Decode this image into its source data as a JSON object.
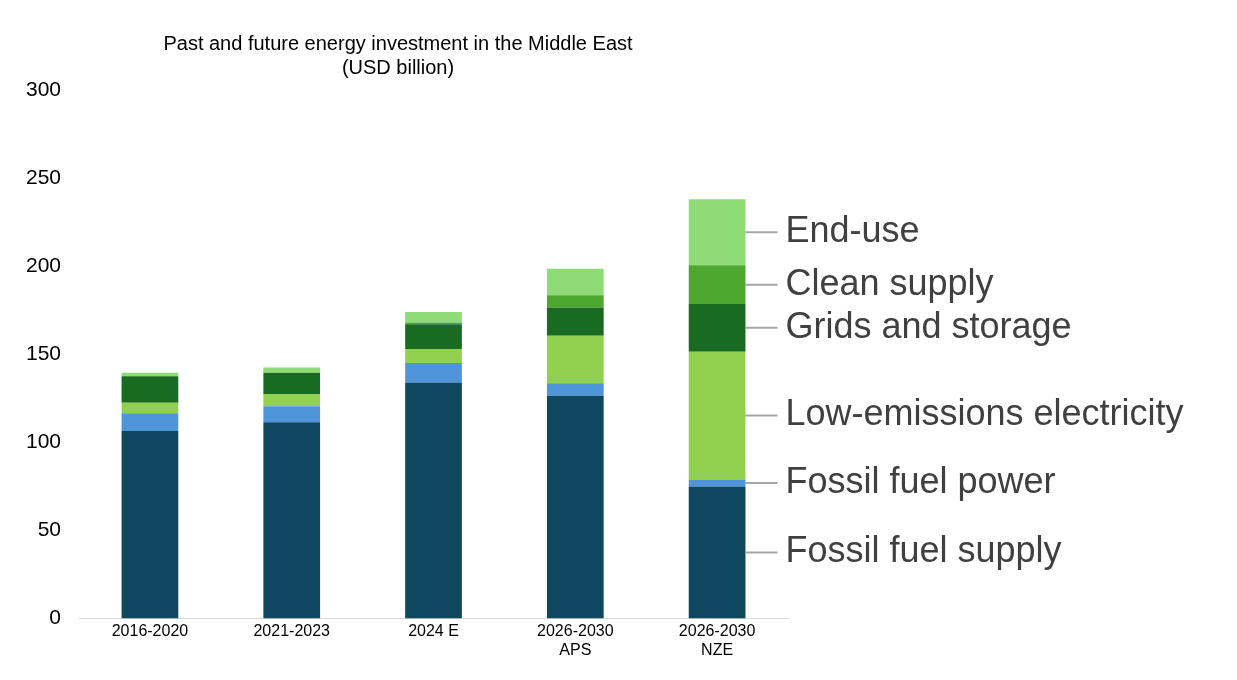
{
  "chart_data": {
    "type": "bar",
    "title": [
      "Past and future energy investment in the Middle East",
      "(USD billion)"
    ],
    "categories": [
      "2016-2020",
      "2021-2023",
      "2024 E",
      "2026-2030\nAPS",
      "2026-2030\nNZE"
    ],
    "stacked": true,
    "legend": "right",
    "grid": false,
    "ylim": [
      0,
      300
    ],
    "yticks": [
      0,
      50,
      100,
      150,
      200,
      250,
      300
    ],
    "series": [
      {
        "name": "Fossil fuel supply",
        "color": "#0f4761",
        "values": [
          106.5,
          111.5,
          134,
          126.5,
          75
        ]
      },
      {
        "name": "Fossil fuel power",
        "color": "#4e95d9",
        "values": [
          10,
          9,
          11,
          7,
          4
        ]
      },
      {
        "name": "Low-emissions electricity",
        "color": "#92d050",
        "values": [
          6,
          7,
          8,
          27,
          72.5
        ]
      },
      {
        "name": "Grids and storage",
        "color": "#1a6b22",
        "values": [
          15,
          12,
          14,
          16,
          27
        ]
      },
      {
        "name": "Clean supply",
        "color": "#4ea72e",
        "values": [
          0,
          0,
          1,
          7,
          22
        ]
      },
      {
        "name": "End-use",
        "color": "#8fdb75",
        "values": [
          2,
          3,
          6,
          15,
          37.5
        ]
      }
    ]
  }
}
